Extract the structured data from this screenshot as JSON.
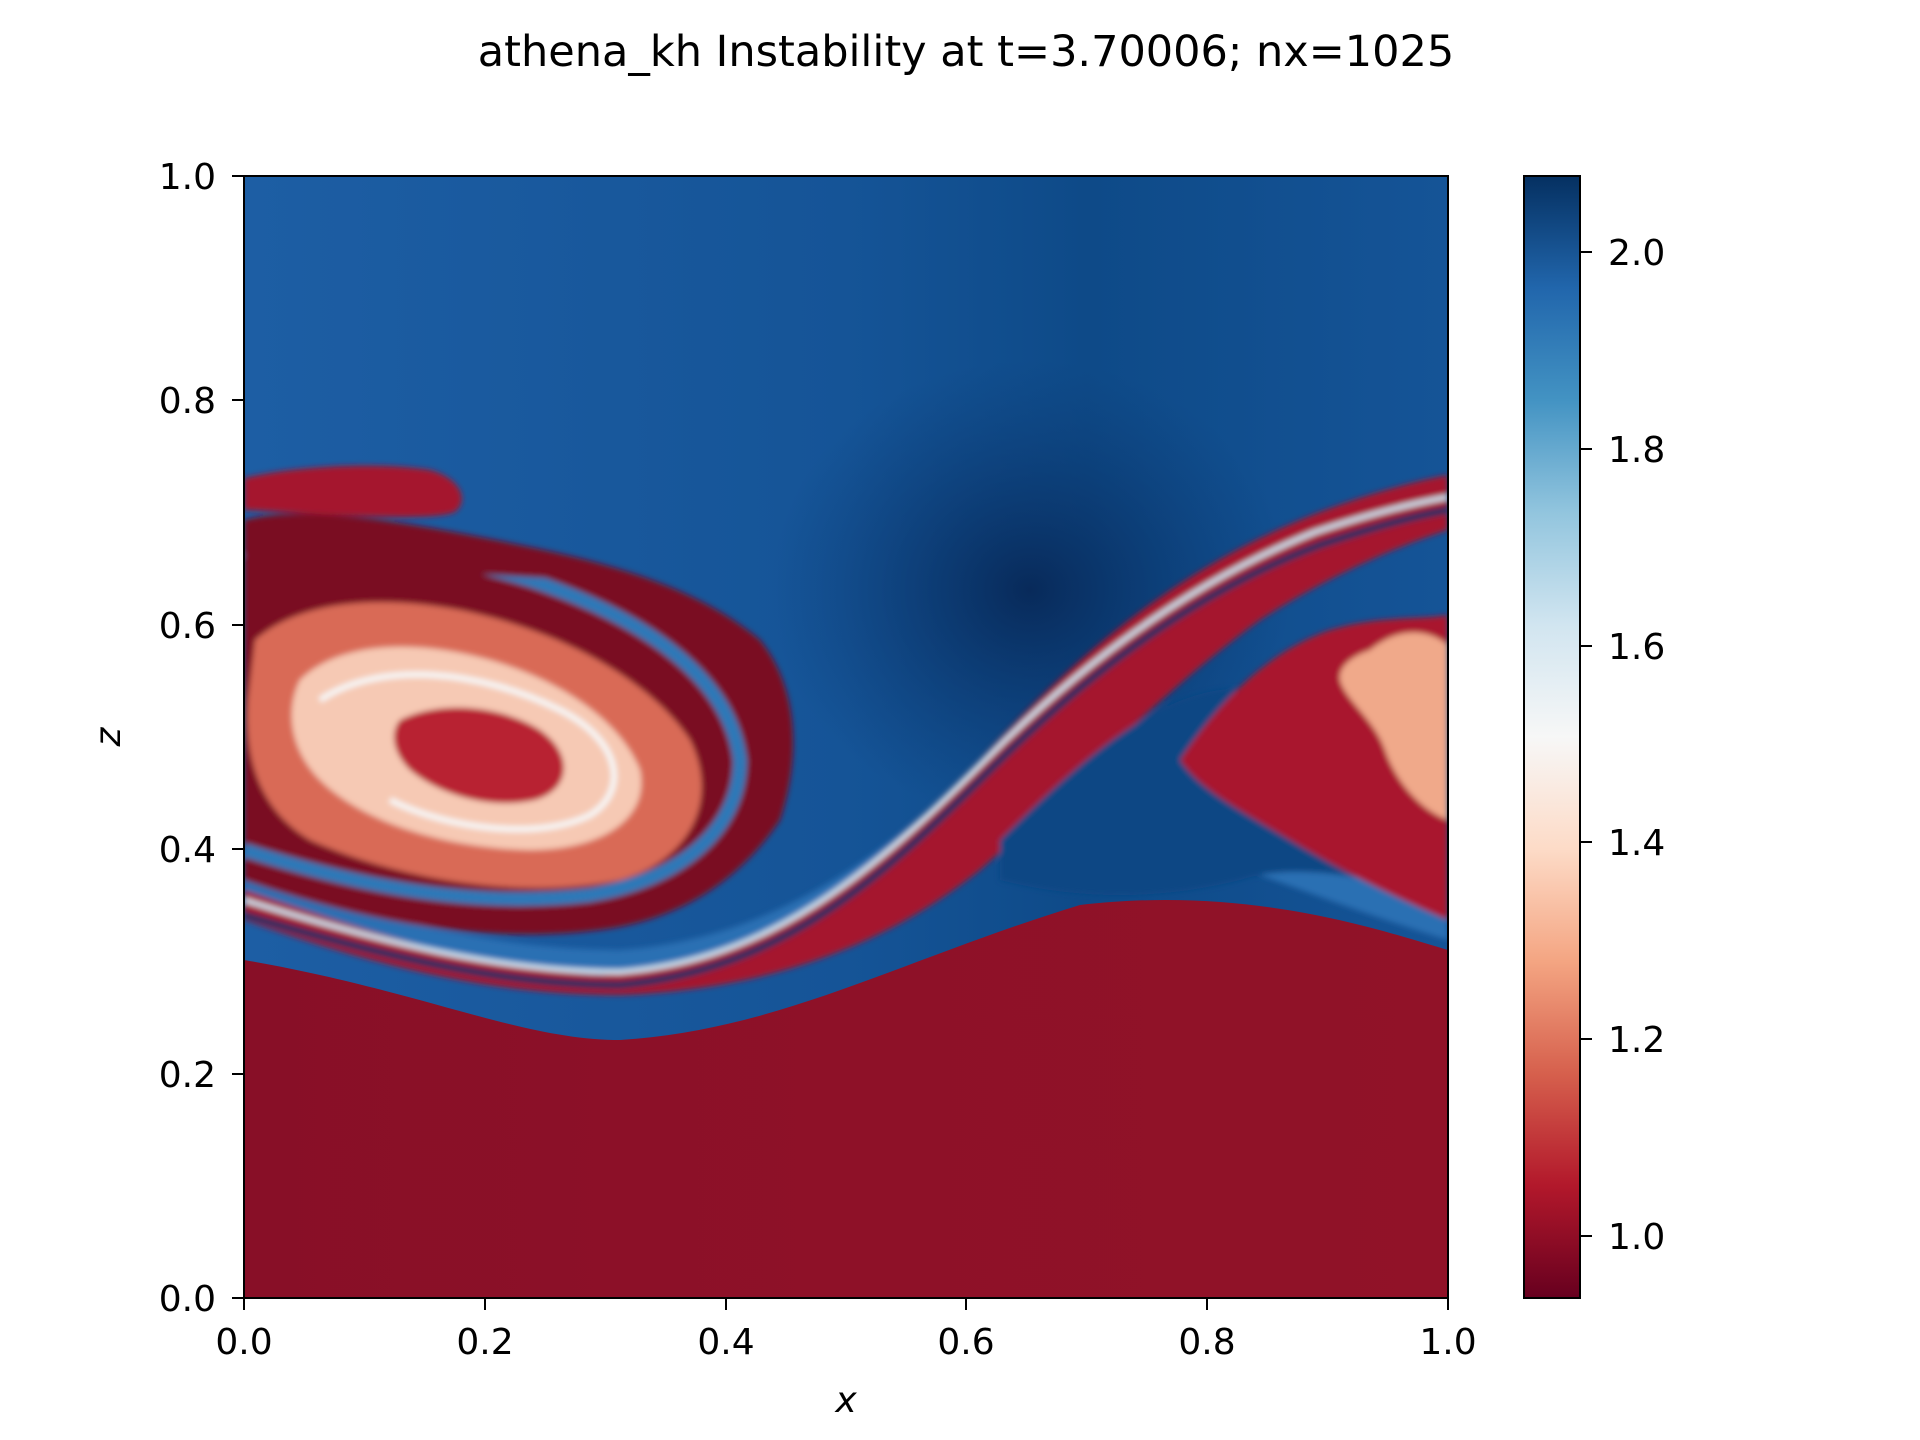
{
  "chart_data": {
    "type": "heatmap",
    "title": "athena_kh Instability at t=3.70006; nx=1025",
    "xlabel": "x",
    "ylabel": "z",
    "xlim": [
      0.0,
      1.0
    ],
    "ylim": [
      0.0,
      1.0
    ],
    "x_ticks": [
      "0.0",
      "0.2",
      "0.4",
      "0.6",
      "0.8",
      "1.0"
    ],
    "y_ticks": [
      "0.0",
      "0.2",
      "0.4",
      "0.6",
      "0.8",
      "1.0"
    ],
    "colormap": "RdBu",
    "colormap_stops": [
      "#67001f",
      "#b2182b",
      "#d6604d",
      "#f4a582",
      "#fddbc7",
      "#f7f7f7",
      "#d1e5f0",
      "#92c5de",
      "#4393c3",
      "#2166ac",
      "#053061"
    ],
    "colorbar": {
      "range": [
        0.94,
        2.08
      ],
      "ticks": [
        "1.0",
        "1.2",
        "1.4",
        "1.6",
        "1.8",
        "2.0"
      ]
    },
    "regions": {
      "upper_background_value": 2.0,
      "lower_background_value": 1.0,
      "interface_z_approx": [
        0.3,
        0.7
      ],
      "vortex_center": [
        0.18,
        0.49
      ]
    },
    "grid": false,
    "legend": "none"
  }
}
